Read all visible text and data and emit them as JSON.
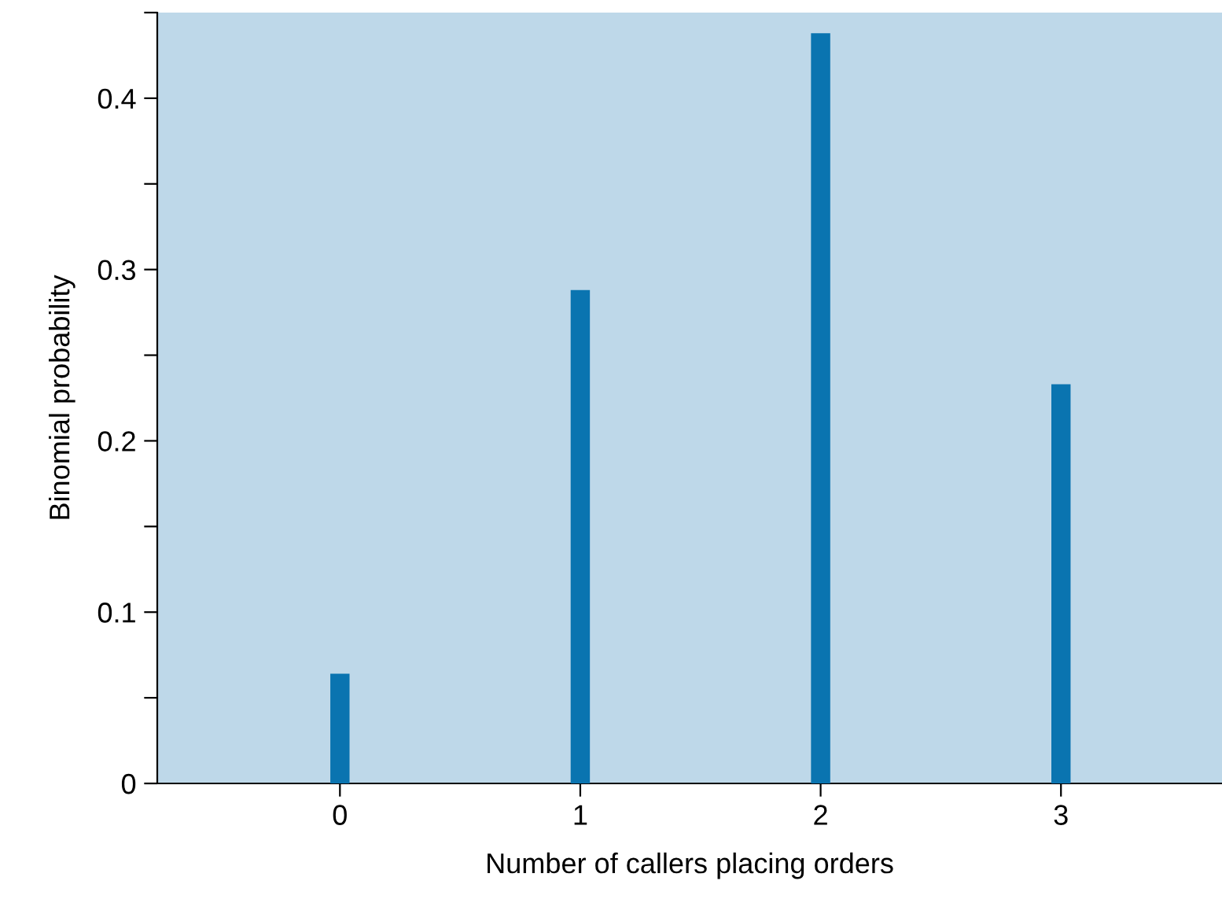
{
  "chart_data": {
    "type": "bar",
    "xlabel": "Number of callers placing orders",
    "ylabel": "Binomial probability",
    "x": [
      0,
      1,
      2,
      3
    ],
    "values": [
      0.064,
      0.288,
      0.438,
      0.233
    ],
    "color": "#0a74b0",
    "xlim": [
      -0.76,
      3.67
    ],
    "xticks": [
      0,
      1,
      2,
      3
    ],
    "ylim": [
      0,
      0.45
    ],
    "yticks": [
      0,
      {
        "value": 0.05,
        "label": null
      },
      0.1,
      {
        "value": 0.15,
        "label": null
      },
      0.2,
      {
        "value": 0.25,
        "label": null
      },
      0.3,
      {
        "value": 0.35,
        "label": null
      },
      0.4,
      {
        "value": 0.45,
        "label": null
      }
    ],
    "grid": false
  }
}
